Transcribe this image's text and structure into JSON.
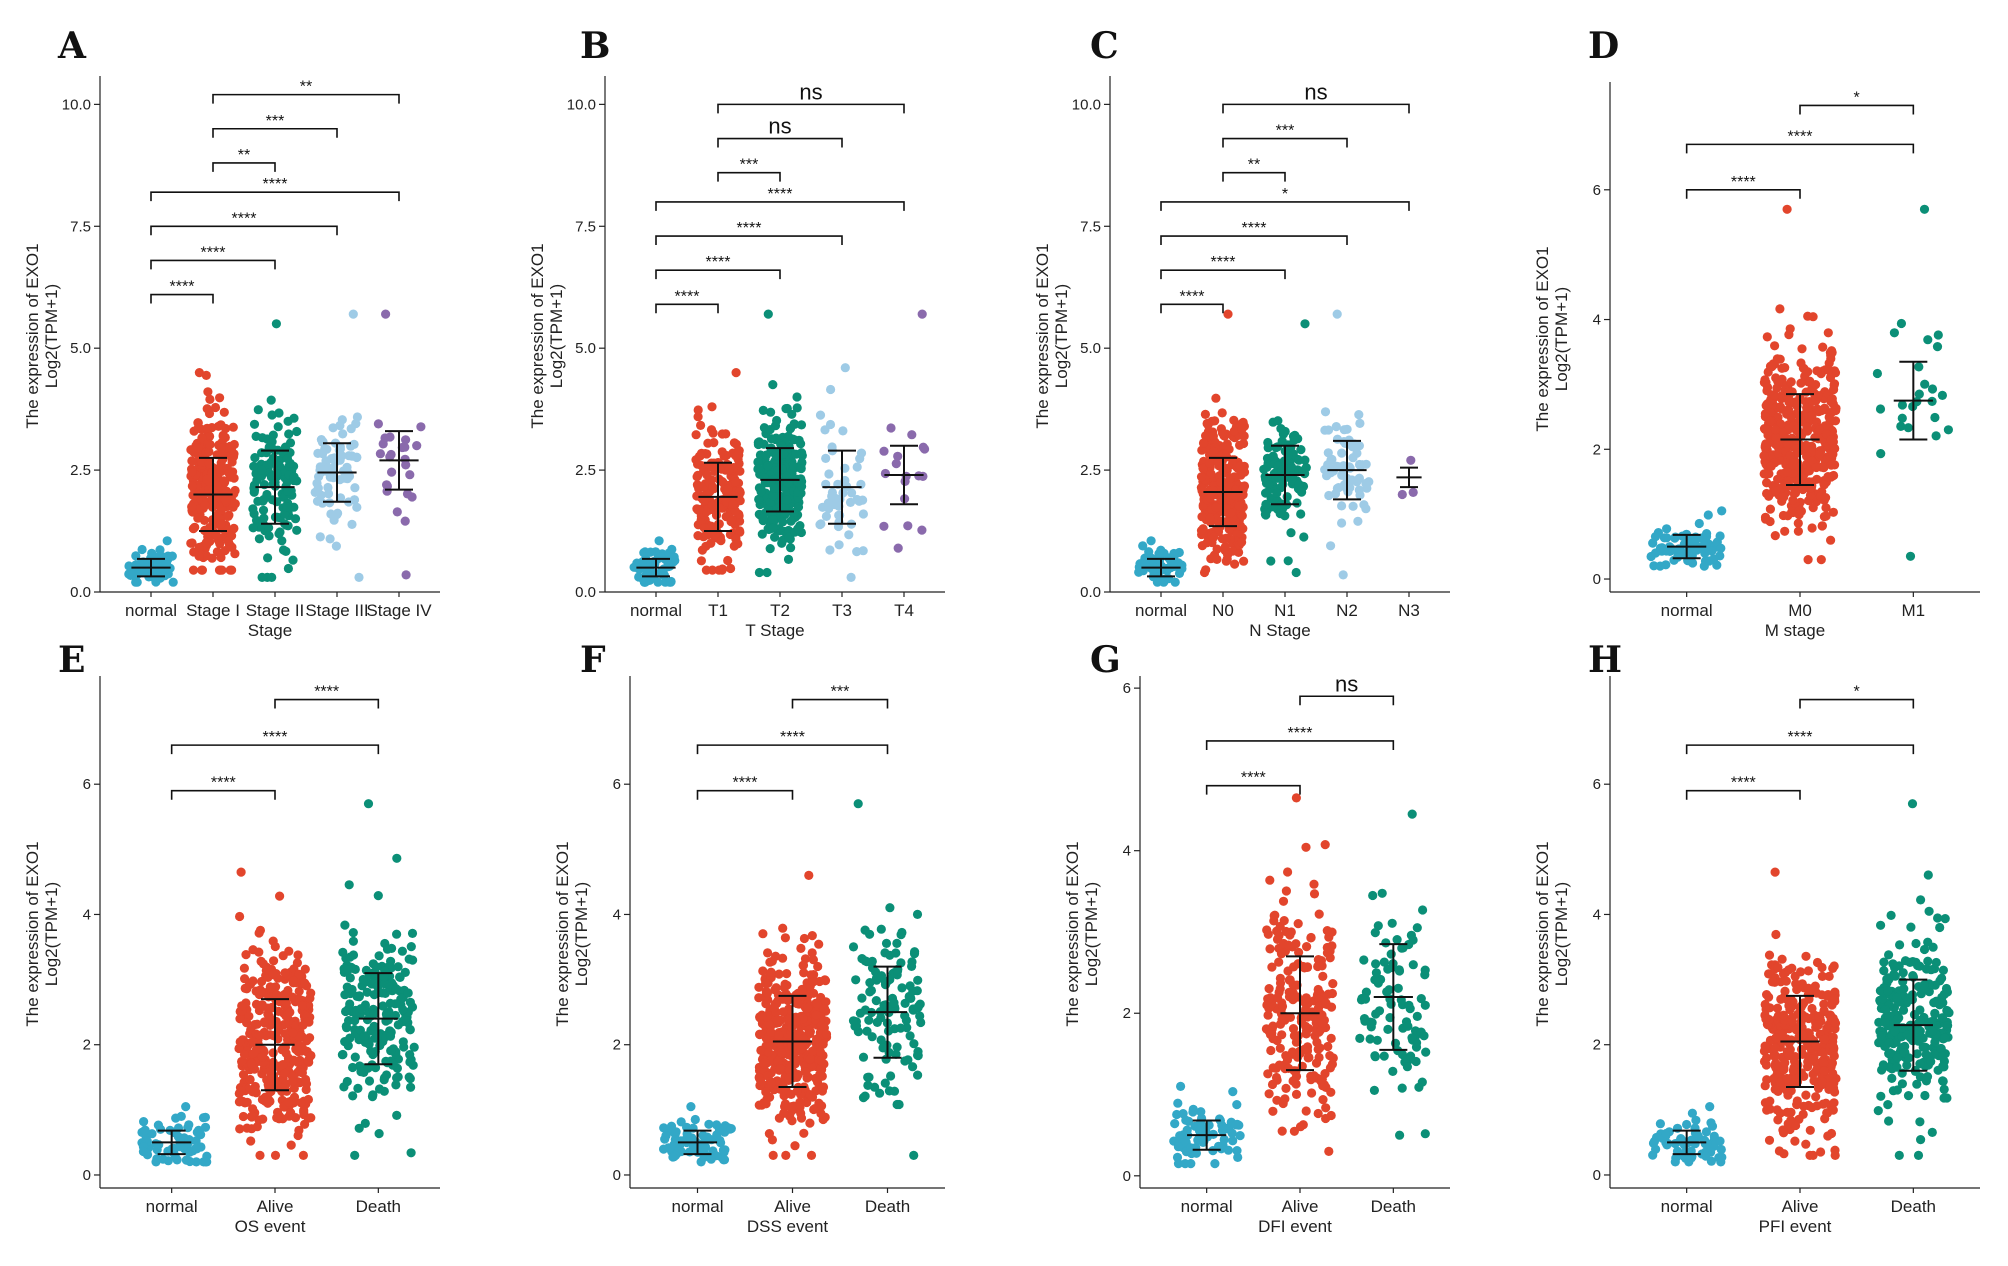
{
  "colors": {
    "normal": "#33a8c7",
    "red": "#e2452c",
    "teal": "#0b8f77",
    "lightblue": "#9ecbe6",
    "purple": "#8a6aac",
    "axis": "#222222"
  },
  "y_title_line1": "The expression of EXO1",
  "y_title_line2": "Log2(TPM+1)",
  "chart_data": [
    {
      "panel": "A",
      "type": "scatter",
      "xlabel": "Stage",
      "ylim": [
        0,
        10.5
      ],
      "yticks": [
        0,
        2.5,
        5,
        7.5,
        10
      ],
      "ytick_labels": [
        "0.0",
        "2.5",
        "5.0",
        "7.5",
        "10.0"
      ],
      "categories": [
        "normal",
        "Stage I",
        "Stage II",
        "Stage III",
        "Stage IV"
      ],
      "groups": [
        {
          "name": "normal",
          "color": "normal",
          "n": 60,
          "mean": 0.5,
          "sd": 0.18,
          "min": 0.2,
          "max": 1.05
        },
        {
          "name": "Stage I",
          "color": "red",
          "n": 260,
          "mean": 2.0,
          "sd": 0.75,
          "min": 0.45,
          "max": 4.5
        },
        {
          "name": "Stage II",
          "color": "teal",
          "n": 130,
          "mean": 2.15,
          "sd": 0.75,
          "min": 0.3,
          "max": 5.5
        },
        {
          "name": "Stage III",
          "color": "lightblue",
          "n": 75,
          "mean": 2.45,
          "sd": 0.6,
          "min": 0.3,
          "max": 5.7
        },
        {
          "name": "Stage IV",
          "color": "purple",
          "n": 25,
          "mean": 2.7,
          "sd": 0.6,
          "min": 0.35,
          "max": 5.7
        }
      ],
      "comparisons": [
        {
          "a": 1,
          "b": 4,
          "label": "**",
          "y": 10.2
        },
        {
          "a": 1,
          "b": 3,
          "label": "***",
          "y": 9.5
        },
        {
          "a": 1,
          "b": 2,
          "label": "**",
          "y": 8.8
        },
        {
          "a": 0,
          "b": 4,
          "label": "****",
          "y": 8.2
        },
        {
          "a": 0,
          "b": 3,
          "label": "****",
          "y": 7.5
        },
        {
          "a": 0,
          "b": 2,
          "label": "****",
          "y": 6.8
        },
        {
          "a": 0,
          "b": 1,
          "label": "****",
          "y": 6.1
        }
      ]
    },
    {
      "panel": "B",
      "type": "scatter",
      "xlabel": "T Stage",
      "ylim": [
        0,
        10.5
      ],
      "yticks": [
        0,
        2.5,
        5,
        7.5,
        10
      ],
      "ytick_labels": [
        "0.0",
        "2.5",
        "5.0",
        "7.5",
        "10.0"
      ],
      "categories": [
        "normal",
        "T1",
        "T2",
        "T3",
        "T4"
      ],
      "groups": [
        {
          "name": "normal",
          "color": "normal",
          "n": 60,
          "mean": 0.5,
          "sd": 0.18,
          "min": 0.2,
          "max": 1.05
        },
        {
          "name": "T1",
          "color": "red",
          "n": 200,
          "mean": 1.95,
          "sd": 0.7,
          "min": 0.45,
          "max": 4.5
        },
        {
          "name": "T2",
          "color": "teal",
          "n": 250,
          "mean": 2.3,
          "sd": 0.65,
          "min": 0.4,
          "max": 5.7
        },
        {
          "name": "T3",
          "color": "lightblue",
          "n": 50,
          "mean": 2.15,
          "sd": 0.75,
          "min": 0.3,
          "max": 4.6
        },
        {
          "name": "T4",
          "color": "purple",
          "n": 18,
          "mean": 2.4,
          "sd": 0.6,
          "min": 0.9,
          "max": 5.7
        }
      ],
      "comparisons": [
        {
          "a": 1,
          "b": 4,
          "label": "ns",
          "y": 10.0
        },
        {
          "a": 1,
          "b": 3,
          "label": "ns",
          "y": 9.3
        },
        {
          "a": 1,
          "b": 2,
          "label": "***",
          "y": 8.6
        },
        {
          "a": 0,
          "b": 4,
          "label": "****",
          "y": 8.0
        },
        {
          "a": 0,
          "b": 3,
          "label": "****",
          "y": 7.3
        },
        {
          "a": 0,
          "b": 2,
          "label": "****",
          "y": 6.6
        },
        {
          "a": 0,
          "b": 1,
          "label": "****",
          "y": 5.9
        }
      ]
    },
    {
      "panel": "C",
      "type": "scatter",
      "xlabel": "N Stage",
      "ylim": [
        0,
        10.5
      ],
      "yticks": [
        0,
        2.5,
        5,
        7.5,
        10
      ],
      "ytick_labels": [
        "0.0",
        "2.5",
        "5.0",
        "7.5",
        "10.0"
      ],
      "categories": [
        "normal",
        "N0",
        "N1",
        "N2",
        "N3"
      ],
      "groups": [
        {
          "name": "normal",
          "color": "normal",
          "n": 60,
          "mean": 0.5,
          "sd": 0.18,
          "min": 0.2,
          "max": 1.05
        },
        {
          "name": "N0",
          "color": "red",
          "n": 280,
          "mean": 2.05,
          "sd": 0.7,
          "min": 0.4,
          "max": 5.7
        },
        {
          "name": "N1",
          "color": "teal",
          "n": 110,
          "mean": 2.4,
          "sd": 0.6,
          "min": 0.4,
          "max": 5.5
        },
        {
          "name": "N2",
          "color": "lightblue",
          "n": 70,
          "mean": 2.5,
          "sd": 0.6,
          "min": 0.35,
          "max": 5.7
        },
        {
          "name": "N3",
          "color": "purple",
          "n": 3,
          "mean": 2.35,
          "sd": 0.2,
          "min": 2.0,
          "max": 2.7
        }
      ],
      "comparisons": [
        {
          "a": 1,
          "b": 4,
          "label": "ns",
          "y": 10.0
        },
        {
          "a": 1,
          "b": 3,
          "label": "***",
          "y": 9.3
        },
        {
          "a": 1,
          "b": 2,
          "label": "**",
          "y": 8.6
        },
        {
          "a": 0,
          "b": 4,
          "label": "*",
          "y": 8.0
        },
        {
          "a": 0,
          "b": 3,
          "label": "****",
          "y": 7.3
        },
        {
          "a": 0,
          "b": 2,
          "label": "****",
          "y": 6.6
        },
        {
          "a": 0,
          "b": 1,
          "label": "****",
          "y": 5.9
        }
      ]
    },
    {
      "panel": "D",
      "type": "scatter",
      "xlabel": "M stage",
      "ylim": [
        -0.2,
        7.6
      ],
      "yticks": [
        0,
        2,
        4,
        6
      ],
      "ytick_labels": [
        "0",
        "2",
        "4",
        "6"
      ],
      "categories": [
        "normal",
        "M0",
        "M1"
      ],
      "groups": [
        {
          "name": "normal",
          "color": "normal",
          "n": 70,
          "mean": 0.5,
          "sd": 0.18,
          "min": 0.2,
          "max": 1.05
        },
        {
          "name": "M0",
          "color": "red",
          "n": 420,
          "mean": 2.15,
          "sd": 0.7,
          "min": 0.3,
          "max": 5.7
        },
        {
          "name": "M1",
          "color": "teal",
          "n": 25,
          "mean": 2.75,
          "sd": 0.6,
          "min": 0.35,
          "max": 5.7
        }
      ],
      "comparisons": [
        {
          "a": 1,
          "b": 2,
          "label": "*",
          "y": 7.3
        },
        {
          "a": 0,
          "b": 2,
          "label": "****",
          "y": 6.7
        },
        {
          "a": 0,
          "b": 1,
          "label": "****",
          "y": 6.0
        }
      ]
    },
    {
      "panel": "E",
      "type": "scatter",
      "xlabel": "OS event",
      "ylim": [
        -0.2,
        7.6
      ],
      "yticks": [
        0,
        2,
        4,
        6
      ],
      "ytick_labels": [
        "0",
        "2",
        "4",
        "6"
      ],
      "categories": [
        "normal",
        "Alive",
        "Death"
      ],
      "groups": [
        {
          "name": "normal",
          "color": "normal",
          "n": 70,
          "mean": 0.5,
          "sd": 0.18,
          "min": 0.2,
          "max": 1.05
        },
        {
          "name": "Alive",
          "color": "red",
          "n": 380,
          "mean": 2.0,
          "sd": 0.7,
          "min": 0.3,
          "max": 4.65
        },
        {
          "name": "Death",
          "color": "teal",
          "n": 210,
          "mean": 2.4,
          "sd": 0.7,
          "min": 0.3,
          "max": 5.7
        }
      ],
      "comparisons": [
        {
          "a": 1,
          "b": 2,
          "label": "****",
          "y": 7.3
        },
        {
          "a": 0,
          "b": 2,
          "label": "****",
          "y": 6.6
        },
        {
          "a": 0,
          "b": 1,
          "label": "****",
          "y": 5.9
        }
      ]
    },
    {
      "panel": "F",
      "type": "scatter",
      "xlabel": "DSS event",
      "ylim": [
        -0.2,
        7.6
      ],
      "yticks": [
        0,
        2,
        4,
        6
      ],
      "ytick_labels": [
        "0",
        "2",
        "4",
        "6"
      ],
      "categories": [
        "normal",
        "Alive",
        "Death"
      ],
      "groups": [
        {
          "name": "normal",
          "color": "normal",
          "n": 70,
          "mean": 0.5,
          "sd": 0.18,
          "min": 0.2,
          "max": 1.05
        },
        {
          "name": "Alive",
          "color": "red",
          "n": 420,
          "mean": 2.05,
          "sd": 0.7,
          "min": 0.3,
          "max": 4.6
        },
        {
          "name": "Death",
          "color": "teal",
          "n": 120,
          "mean": 2.5,
          "sd": 0.7,
          "min": 0.3,
          "max": 5.7
        }
      ],
      "comparisons": [
        {
          "a": 1,
          "b": 2,
          "label": "***",
          "y": 7.3
        },
        {
          "a": 0,
          "b": 2,
          "label": "****",
          "y": 6.6
        },
        {
          "a": 0,
          "b": 1,
          "label": "****",
          "y": 5.9
        }
      ]
    },
    {
      "panel": "G",
      "type": "scatter",
      "xlabel": "DFI event",
      "ylim": [
        -0.15,
        6.1
      ],
      "yticks": [
        0,
        2,
        4,
        6
      ],
      "ytick_labels": [
        "0",
        "2",
        "4",
        "6"
      ],
      "categories": [
        "normal",
        "Alive",
        "Death"
      ],
      "groups": [
        {
          "name": "normal",
          "color": "normal",
          "n": 70,
          "mean": 0.5,
          "sd": 0.18,
          "min": 0.15,
          "max": 1.1
        },
        {
          "name": "Alive",
          "color": "red",
          "n": 230,
          "mean": 2.0,
          "sd": 0.7,
          "min": 0.3,
          "max": 4.65
        },
        {
          "name": "Death",
          "color": "teal",
          "n": 90,
          "mean": 2.2,
          "sd": 0.65,
          "min": 0.5,
          "max": 4.45
        }
      ],
      "comparisons": [
        {
          "a": 1,
          "b": 2,
          "label": "ns",
          "y": 5.9
        },
        {
          "a": 0,
          "b": 2,
          "label": "****",
          "y": 5.35
        },
        {
          "a": 0,
          "b": 1,
          "label": "****",
          "y": 4.8
        }
      ]
    },
    {
      "panel": "H",
      "type": "scatter",
      "xlabel": "PFI event",
      "ylim": [
        -0.2,
        7.6
      ],
      "yticks": [
        0,
        2,
        4,
        6
      ],
      "ytick_labels": [
        "0",
        "2",
        "4",
        "6"
      ],
      "categories": [
        "normal",
        "Alive",
        "Death"
      ],
      "groups": [
        {
          "name": "normal",
          "color": "normal",
          "n": 70,
          "mean": 0.5,
          "sd": 0.18,
          "min": 0.2,
          "max": 1.05
        },
        {
          "name": "Alive",
          "color": "red",
          "n": 340,
          "mean": 2.05,
          "sd": 0.7,
          "min": 0.3,
          "max": 4.65
        },
        {
          "name": "Death",
          "color": "teal",
          "n": 260,
          "mean": 2.3,
          "sd": 0.7,
          "min": 0.3,
          "max": 5.7
        }
      ],
      "comparisons": [
        {
          "a": 1,
          "b": 2,
          "label": "*",
          "y": 7.3
        },
        {
          "a": 0,
          "b": 2,
          "label": "****",
          "y": 6.6
        },
        {
          "a": 0,
          "b": 1,
          "label": "****",
          "y": 5.9
        }
      ]
    }
  ]
}
